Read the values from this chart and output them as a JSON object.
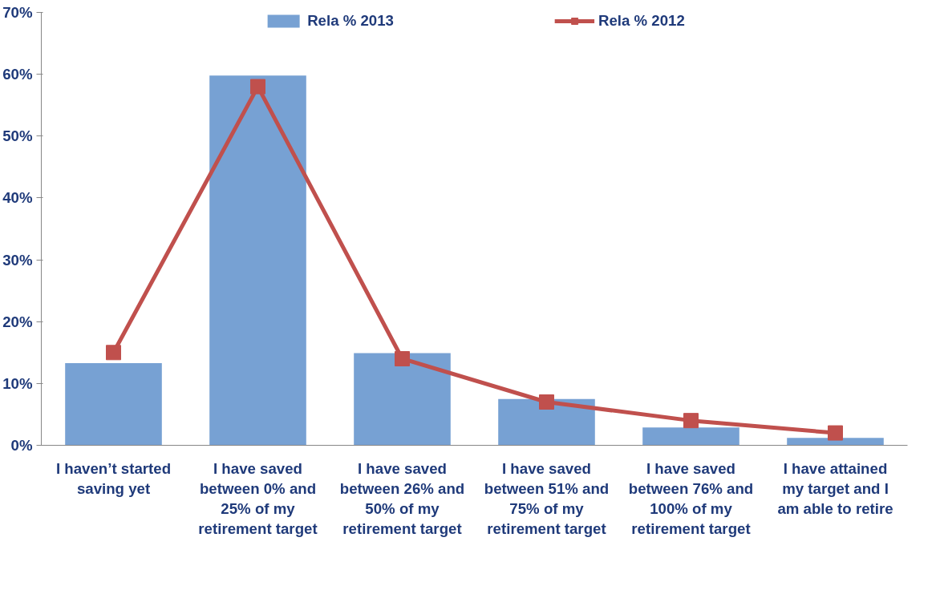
{
  "chart_data": {
    "type": "bar",
    "categories": [
      "I haven’t started saving yet",
      "I have saved between 0% and 25% of my retirement target",
      "I have saved between 26% and 50% of my retirement target",
      "I have saved between 51% and 75% of my retirement target",
      "I have saved between 76% and 100% of my retirement target",
      "I have attained my target and I am able to retire"
    ],
    "series": [
      {
        "name": "Rela % 2013",
        "color": "#77a1d3",
        "values": [
          13.3,
          59.8,
          14.9,
          7.5,
          2.9,
          1.2
        ]
      },
      {
        "name": "Rela % 2012",
        "type": "line",
        "color": "#c0504d",
        "values": [
          15,
          58,
          14,
          7,
          4,
          2
        ]
      }
    ],
    "ylim": [
      0,
      70
    ],
    "yticks": [
      {
        "value": 0,
        "label": "0%"
      },
      {
        "value": 10,
        "label": "10%"
      },
      {
        "value": 20,
        "label": "20%"
      },
      {
        "value": 30,
        "label": "30%"
      },
      {
        "value": 40,
        "label": "40%"
      },
      {
        "value": 50,
        "label": "50%"
      },
      {
        "value": 60,
        "label": "60%"
      },
      {
        "value": 70,
        "label": "70%"
      }
    ],
    "marker": "square",
    "legend": "top",
    "grid": false
  }
}
